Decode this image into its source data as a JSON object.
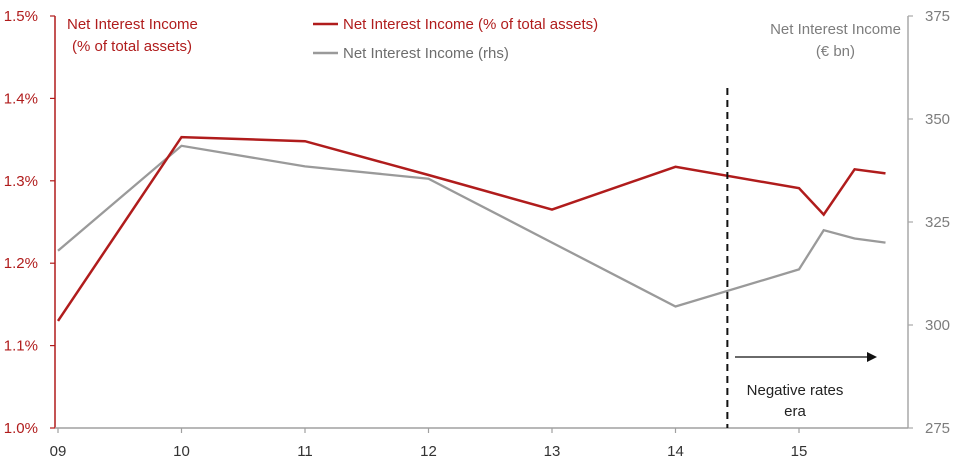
{
  "chart_data": {
    "type": "line",
    "x_categories": [
      "09",
      "10",
      "11",
      "12",
      "13",
      "14",
      "15"
    ],
    "left_axis": {
      "title_lines": [
        "Net Interest Income",
        "(% of total assets)"
      ],
      "ylim": [
        1.0,
        1.5
      ],
      "ticks": [
        "1.0%",
        "1.1%",
        "1.2%",
        "1.3%",
        "1.4%",
        "1.5%"
      ],
      "color": "#b01c1c"
    },
    "right_axis": {
      "title_lines": [
        "Net Interest Income",
        "(€ bn)"
      ],
      "ylim": [
        275,
        375
      ],
      "ticks": [
        "275",
        "300",
        "325",
        "350",
        "375"
      ],
      "color": "#8a8a8a"
    },
    "series": [
      {
        "name": "Net Interest Income (% of total assets)",
        "axis": "left",
        "color": "#b01c1c",
        "x": [
          0,
          1,
          2,
          3,
          4,
          5,
          6,
          6.2,
          6.45,
          6.7
        ],
        "values": [
          1.13,
          1.353,
          1.348,
          1.307,
          1.265,
          1.317,
          1.291,
          1.259,
          1.314,
          1.309
        ]
      },
      {
        "name": "Net Interest Income (rhs)",
        "axis": "right",
        "color": "#9a9a9a",
        "x": [
          0,
          1,
          2,
          3,
          4,
          5,
          6,
          6.2,
          6.45,
          6.7
        ],
        "values": [
          318,
          343.5,
          338.5,
          335.5,
          320,
          304.5,
          313.5,
          323,
          321,
          320
        ]
      }
    ],
    "marker_line": {
      "x": 5.42,
      "style": "dashed"
    },
    "annotation": {
      "lines": [
        "Negative rates",
        "era"
      ]
    },
    "legend": {
      "placement": "top-center"
    }
  }
}
